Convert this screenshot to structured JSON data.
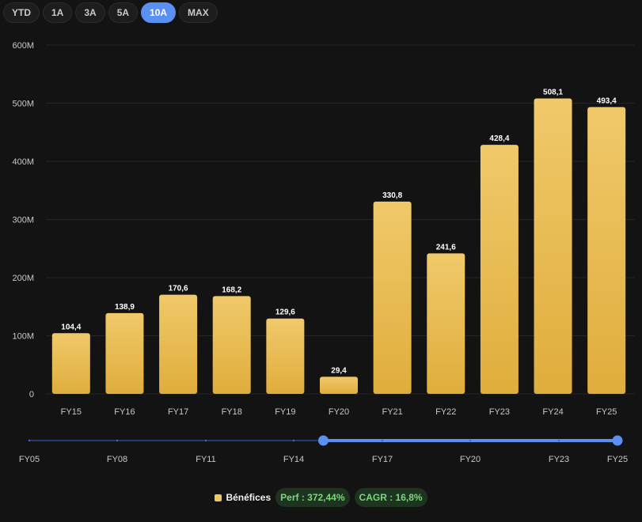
{
  "range_tabs": [
    {
      "label": "YTD",
      "active": false
    },
    {
      "label": "1A",
      "active": false
    },
    {
      "label": "3A",
      "active": false
    },
    {
      "label": "5A",
      "active": false
    },
    {
      "label": "10A",
      "active": true
    },
    {
      "label": "MAX",
      "active": false
    }
  ],
  "colors": {
    "bar_top": "#f0c96a",
    "bar_bottom": "#e0ad3c",
    "accent": "#5b8ff2",
    "grid": "#262626",
    "axis_text": "#c8c8c8",
    "positive_pill_bg": "#1e3320",
    "positive_pill_text": "#7ed67e"
  },
  "chart_data": {
    "type": "bar",
    "categories": [
      "FY15",
      "FY16",
      "FY17",
      "FY18",
      "FY19",
      "FY20",
      "FY21",
      "FY22",
      "FY23",
      "FY24",
      "FY25"
    ],
    "series": [
      {
        "name": "Bénéfices",
        "values": [
          104.4,
          138.9,
          170.6,
          168.2,
          129.6,
          29.4,
          330.8,
          241.6,
          428.4,
          508.1,
          493.4
        ],
        "labels": [
          "104,4",
          "138,9",
          "170,6",
          "168,2",
          "129,6",
          "29,4",
          "330,8",
          "241,6",
          "428,4",
          "508,1",
          "493,4"
        ]
      }
    ],
    "ylim": [
      0,
      600
    ],
    "yticks": [
      0,
      100,
      200,
      300,
      400,
      500,
      600
    ],
    "ytick_labels": [
      "0",
      "100M",
      "200M",
      "300M",
      "400M",
      "500M",
      "600M"
    ],
    "grid": true
  },
  "navigator": {
    "labels": [
      "FY05",
      "FY08",
      "FY11",
      "FY14",
      "FY17",
      "FY20",
      "FY23",
      "FY25"
    ],
    "range_start": 0.5,
    "range_end": 1.0
  },
  "legend": {
    "series_label": "Bénéfices",
    "perf": "Perf : 372,44%",
    "cagr": "CAGR : 16,8%"
  }
}
